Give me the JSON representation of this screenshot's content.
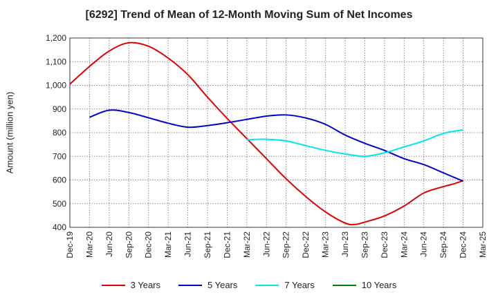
{
  "chart_data": {
    "type": "line",
    "title": "[6292]  Trend of Mean of 12-Month Moving Sum of Net Incomes",
    "ylabel": "Amount (million yen)",
    "xlabel": "",
    "ylim": [
      400,
      1200
    ],
    "yticks": [
      400,
      500,
      600,
      700,
      800,
      900,
      1000,
      1100,
      1200
    ],
    "ytick_labels": [
      "400",
      "500",
      "600",
      "700",
      "800",
      "900",
      "1,000",
      "1,100",
      "1,200"
    ],
    "xticks": [
      "Dec-19",
      "Mar-20",
      "Jun-20",
      "Sep-20",
      "Dec-20",
      "Mar-21",
      "Jun-21",
      "Sep-21",
      "Dec-21",
      "Mar-22",
      "Jun-22",
      "Sep-22",
      "Dec-22",
      "Mar-23",
      "Jun-23",
      "Sep-23",
      "Dec-23",
      "Mar-24",
      "Jun-24",
      "Sep-24",
      "Dec-24",
      "Mar-25"
    ],
    "grid": true,
    "legend_position": "bottom",
    "series": [
      {
        "name": "3 Years",
        "color": "#e00000",
        "x": [
          0,
          1,
          2,
          3,
          4,
          5,
          6,
          7,
          8,
          9,
          10,
          11,
          12,
          13,
          14,
          14.5,
          15,
          16,
          17,
          18,
          19,
          19.5,
          20
        ],
        "values": [
          1005,
          1080,
          1145,
          1180,
          1165,
          1115,
          1045,
          950,
          860,
          775,
          690,
          605,
          530,
          465,
          418,
          412,
          422,
          448,
          490,
          545,
          572,
          583,
          597
        ]
      },
      {
        "name": "5 Years",
        "color": "#0000cc",
        "x": [
          1,
          2,
          3,
          4,
          5,
          6,
          7,
          8,
          9,
          10,
          11,
          12,
          13,
          14,
          15,
          16,
          17,
          18,
          19,
          20
        ],
        "values": [
          865,
          895,
          885,
          863,
          840,
          823,
          830,
          842,
          856,
          870,
          875,
          862,
          835,
          790,
          755,
          725,
          690,
          665,
          630,
          595
        ]
      },
      {
        "name": "7 Years",
        "color": "#00e5ee",
        "x": [
          9,
          10,
          11,
          12,
          13,
          14,
          15,
          16,
          17,
          18,
          19,
          20
        ],
        "values": [
          770,
          772,
          765,
          745,
          725,
          710,
          700,
          715,
          740,
          765,
          797,
          812
        ]
      },
      {
        "name": "10 Years",
        "color": "#008000",
        "x": [],
        "values": []
      }
    ]
  }
}
